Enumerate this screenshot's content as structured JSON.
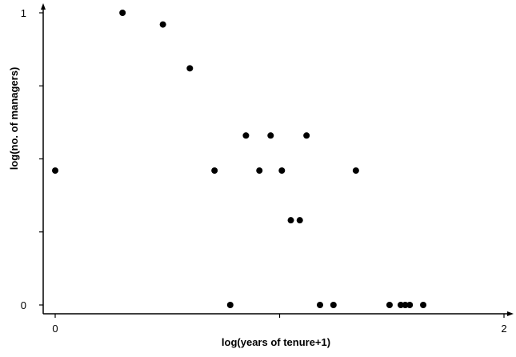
{
  "chart_data": {
    "type": "scatter",
    "title": "",
    "xlabel": "log(years of tenure+1)",
    "ylabel": "log(no. of managers)",
    "xlim": [
      0,
      2
    ],
    "ylim": [
      0,
      1
    ],
    "x_ticks": [
      {
        "value": 0,
        "label": "0"
      },
      {
        "value": 1,
        "label": ""
      },
      {
        "value": 2,
        "label": "2"
      }
    ],
    "y_ticks": [
      {
        "value": 0,
        "label": "0"
      },
      {
        "value": 0.25,
        "label": ""
      },
      {
        "value": 0.5,
        "label": ""
      },
      {
        "value": 0.75,
        "label": ""
      },
      {
        "value": 1,
        "label": "1"
      }
    ],
    "grid": false,
    "legend": "none",
    "marker_color": "#000000",
    "points": [
      {
        "x": 0.0,
        "y": 0.46
      },
      {
        "x": 0.3,
        "y": 1.0
      },
      {
        "x": 0.48,
        "y": 0.96
      },
      {
        "x": 0.6,
        "y": 0.81
      },
      {
        "x": 0.71,
        "y": 0.46
      },
      {
        "x": 0.78,
        "y": 0.0
      },
      {
        "x": 0.85,
        "y": 0.58
      },
      {
        "x": 0.91,
        "y": 0.46
      },
      {
        "x": 0.96,
        "y": 0.58
      },
      {
        "x": 1.01,
        "y": 0.46
      },
      {
        "x": 1.05,
        "y": 0.29
      },
      {
        "x": 1.09,
        "y": 0.29
      },
      {
        "x": 1.12,
        "y": 0.58
      },
      {
        "x": 1.18,
        "y": 0.0
      },
      {
        "x": 1.24,
        "y": 0.0
      },
      {
        "x": 1.34,
        "y": 0.46
      },
      {
        "x": 1.49,
        "y": 0.0
      },
      {
        "x": 1.54,
        "y": 0.0
      },
      {
        "x": 1.56,
        "y": 0.0
      },
      {
        "x": 1.58,
        "y": 0.0
      },
      {
        "x": 1.64,
        "y": 0.0
      }
    ]
  }
}
